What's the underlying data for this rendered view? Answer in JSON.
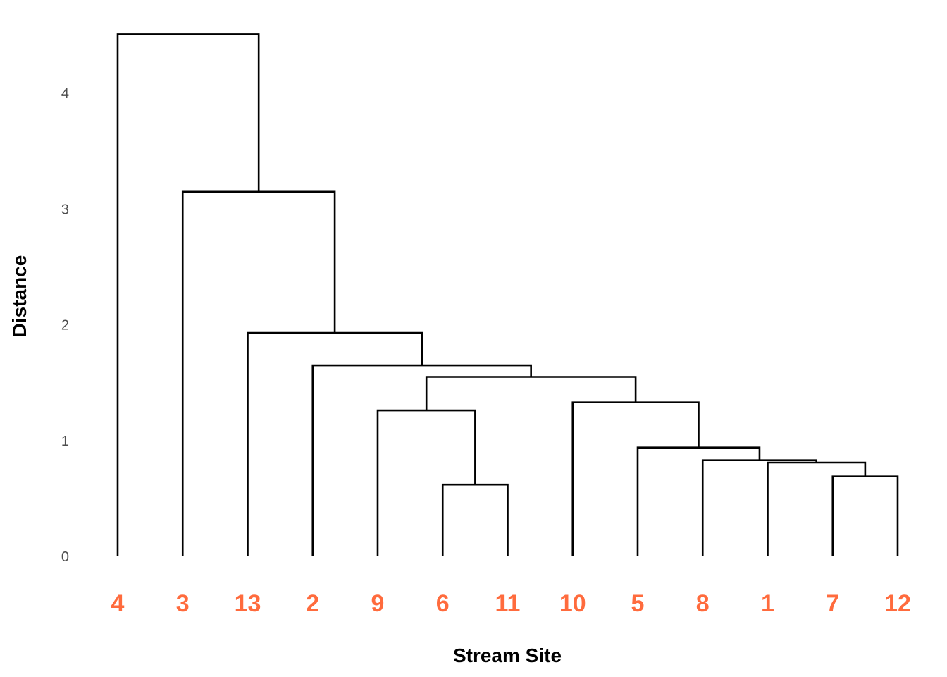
{
  "chart_data": {
    "type": "dendrogram",
    "title": "",
    "xlabel": "Stream Site",
    "ylabel": "Distance",
    "ylim": [
      0,
      4.5
    ],
    "yticks": [
      0,
      1,
      2,
      3,
      4
    ],
    "grid": false,
    "leaf_label_color": "#FF6B3D",
    "branch_color": "#000000",
    "leaves": [
      "4",
      "3",
      "13",
      "2",
      "9",
      "6",
      "11",
      "10",
      "5",
      "8",
      "1",
      "7",
      "12"
    ],
    "merges": [
      {
        "left": "6",
        "right": "11",
        "height": 0.62
      },
      {
        "left": "7",
        "right": "12",
        "height": 0.69
      },
      {
        "left": "1",
        "right": "7-12",
        "height": 0.81
      },
      {
        "left": "8",
        "right": "1-7-12",
        "height": 0.83
      },
      {
        "left": "5",
        "right": "8-1-7-12",
        "height": 0.94
      },
      {
        "left": "9",
        "right": "6-11",
        "height": 1.26
      },
      {
        "left": "10",
        "right": "5-8-1-7-12",
        "height": 1.33
      },
      {
        "left": "9-6-11",
        "right": "10-5-8-1-7-12",
        "height": 1.55
      },
      {
        "left": "2",
        "right": "9-6-11-10-5-8-1-7-12",
        "height": 1.65
      },
      {
        "left": "13",
        "right": "2-9-6-11-10-5-8-1-7-12",
        "height": 1.93
      },
      {
        "left": "3",
        "right": "13-2-9-6-11-10-5-8-1-7-12",
        "height": 3.15
      },
      {
        "left": "4",
        "right": "3-13-2-9-6-11-10-5-8-1-7-12",
        "height": 4.51
      }
    ]
  }
}
